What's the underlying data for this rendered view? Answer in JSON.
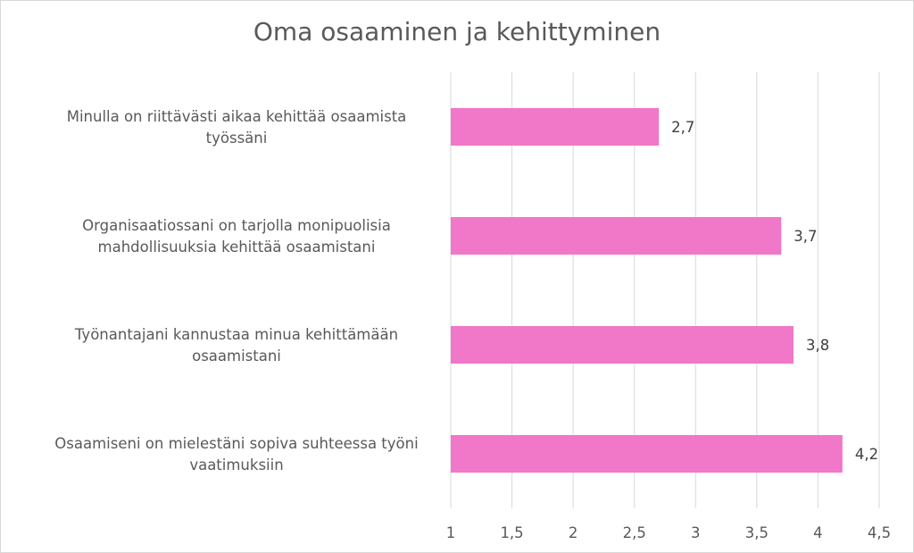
{
  "chart_data": {
    "type": "bar",
    "orientation": "horizontal",
    "title": "Oma osaaminen ja kehittyminen",
    "categories": [
      "Minulla on riittävästi aikaa kehittää osaamista työssäni",
      "Organisaatiossani on tarjolla monipuolisia mahdollisuuksia kehittää osaamistani",
      "Työnantajani kannustaa minua kehittämään osaamistani",
      "Osaamiseni on mielestäni sopiva suhteessa työni vaatimuksiin"
    ],
    "category_lines": [
      [
        "Minulla on riittävästi aikaa kehittää osaamista",
        "työssäni"
      ],
      [
        "Organisaatiossani on tarjolla monipuolisia",
        "mahdollisuuksia kehittää osaamistani"
      ],
      [
        "Työnantajani kannustaa minua kehittämään",
        "osaamistani"
      ],
      [
        "Osaamiseni on mielestäni sopiva suhteessa työni",
        "vaatimuksiin"
      ]
    ],
    "values": [
      2.7,
      3.7,
      3.8,
      4.2
    ],
    "value_labels": [
      "2,7",
      "3,7",
      "3,8",
      "4,2"
    ],
    "xlim": [
      1,
      4.5
    ],
    "ticks": [
      1,
      1.5,
      2,
      2.5,
      3,
      3.5,
      4,
      4.5
    ],
    "tick_labels": [
      "1",
      "1,5",
      "2",
      "2,5",
      "3",
      "3,5",
      "4",
      "4,5"
    ],
    "grid": true,
    "legend": "none",
    "bar_color": "#f177c8",
    "grid_color": "#d9d9d9"
  }
}
